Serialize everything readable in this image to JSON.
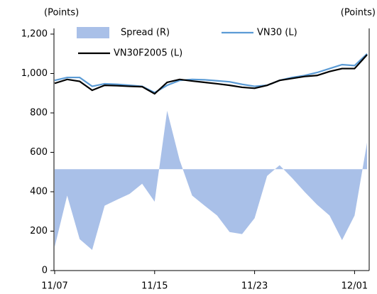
{
  "chart_data": {
    "type": "line",
    "y_label": "(Points)",
    "y2_label": "(Points)",
    "categories": [
      "11/07",
      null,
      null,
      null,
      null,
      null,
      null,
      null,
      "11/15",
      null,
      null,
      null,
      null,
      null,
      null,
      null,
      "11/23",
      null,
      null,
      null,
      null,
      null,
      null,
      null,
      "12/01",
      null
    ],
    "series": [
      {
        "name": "Spread (R)",
        "type": "area",
        "axis": "y2",
        "color": "#a9c0e8",
        "values": [
          -23.0,
          -7.8,
          -20.7,
          -23.9,
          -10.8,
          -9.0,
          -7.3,
          -4.3,
          -9.6,
          17.3,
          2.7,
          -7.8,
          -10.8,
          -13.7,
          -18.6,
          -19.2,
          -14.5,
          -2.0,
          1.2,
          -2.6,
          -6.7,
          -10.5,
          -13.7,
          -21.0,
          -13.7,
          7.9
        ]
      },
      {
        "name": "VN30 (L)",
        "type": "line",
        "color": "#5b9bd5",
        "values": [
          965,
          980,
          980,
          935,
          948,
          945,
          940,
          935,
          903,
          940,
          965,
          970,
          968,
          963,
          958,
          945,
          935,
          940,
          965,
          980,
          990,
          1005,
          1025,
          1045,
          1040,
          1100
        ]
      },
      {
        "name": "VN30F2005 (L)",
        "type": "line",
        "color": "#000000",
        "values": [
          950,
          970,
          960,
          915,
          940,
          938,
          935,
          933,
          897,
          955,
          970,
          962,
          955,
          948,
          940,
          930,
          925,
          940,
          965,
          975,
          985,
          990,
          1010,
          1025,
          1025,
          1095
        ]
      }
    ],
    "ylim": [
      0,
      1200
    ],
    "yticks": [
      0,
      200,
      400,
      600,
      800,
      {
        "value": 1000,
        "label": "1,000"
      },
      {
        "value": 1200,
        "label": "1,200"
      }
    ],
    "y2lim": [
      -30,
      40
    ]
  }
}
